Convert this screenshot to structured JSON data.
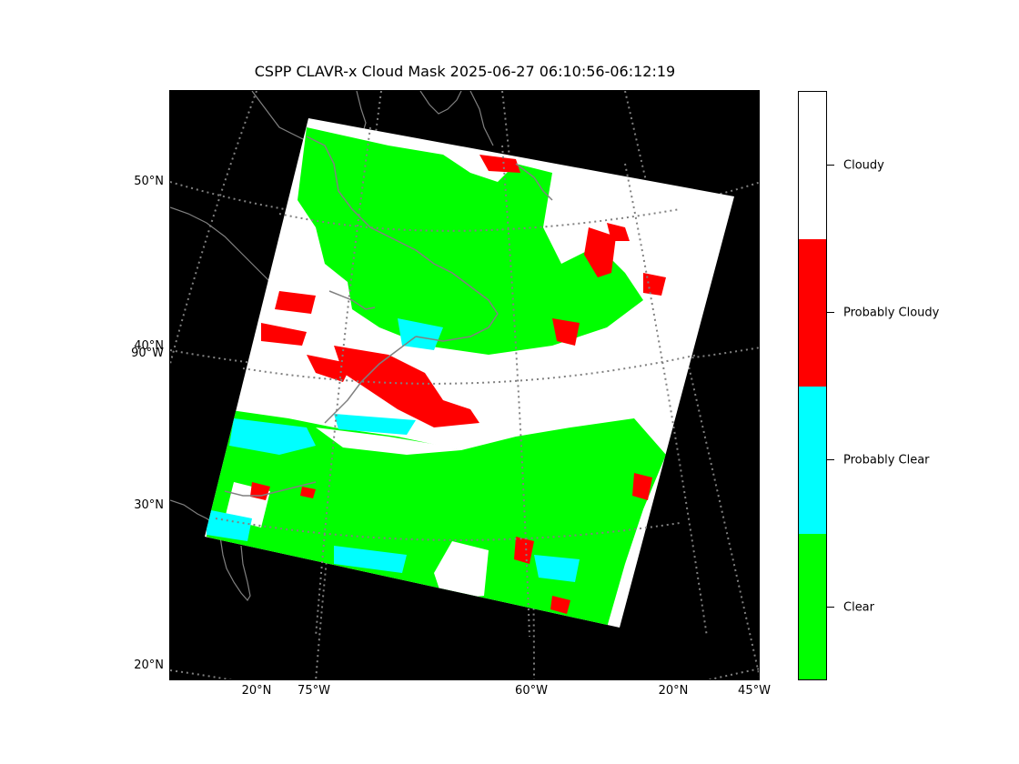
{
  "title": "CSPP CLAVR-x Cloud Mask 2025-06-27 06:10:56-06:12:19",
  "lat_labels": [
    "50°N",
    "40°N",
    "30°N",
    "20°N"
  ],
  "lon_labels_left": [
    "90°W"
  ],
  "lon_labels_bottom": [
    "20°N",
    "75°W",
    "60°W",
    "20°N",
    "45°W"
  ],
  "colorbar": {
    "categories": [
      {
        "label": "Cloudy",
        "color": "#ffffff"
      },
      {
        "label": "Probably Cloudy",
        "color": "#ff0000"
      },
      {
        "label": "Probably Clear",
        "color": "#00ffff"
      },
      {
        "label": "Clear",
        "color": "#00ff00"
      }
    ]
  },
  "colors": {
    "background": "#000000",
    "graticule": "#808080",
    "coastline": "#808080"
  }
}
